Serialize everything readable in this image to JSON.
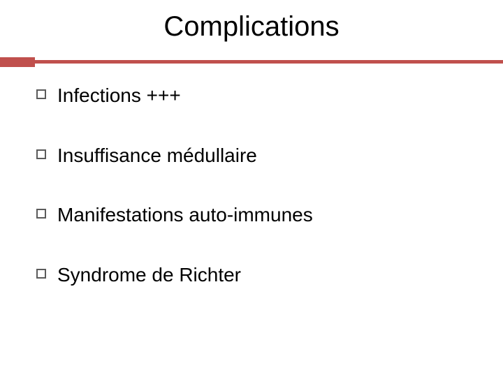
{
  "slide": {
    "title": "Complications",
    "title_fontsize": 40,
    "title_color": "#000000",
    "background_color": "#ffffff",
    "accent_color": "#c0504d",
    "divider_tab_width": 50,
    "divider_line_height": 5,
    "bullet_border_color": "#5b5b5b",
    "bullet_size": 14,
    "content_fontsize": 28,
    "items": [
      {
        "text": "Infections +++"
      },
      {
        "text": "Insuffisance médullaire"
      },
      {
        "text": "Manifestations auto-immunes"
      },
      {
        "text": "Syndrome de Richter"
      }
    ]
  }
}
